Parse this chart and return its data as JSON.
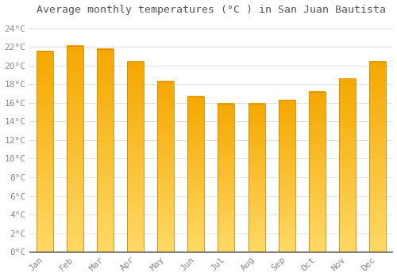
{
  "title": "Average monthly temperatures (°C ) in San Juan Bautista",
  "months": [
    "Jan",
    "Feb",
    "Mar",
    "Apr",
    "May",
    "Jun",
    "Jul",
    "Aug",
    "Sep",
    "Oct",
    "Nov",
    "Dec"
  ],
  "values": [
    21.5,
    22.1,
    21.8,
    20.4,
    18.3,
    16.7,
    15.9,
    15.9,
    16.3,
    17.2,
    18.6,
    20.4
  ],
  "bar_color_top": "#F5A800",
  "bar_color_bottom": "#FFD966",
  "ylim": [
    0,
    25
  ],
  "yticks": [
    0,
    2,
    4,
    6,
    8,
    10,
    12,
    14,
    16,
    18,
    20,
    22,
    24
  ],
  "ytick_labels": [
    "0°C",
    "2°C",
    "4°C",
    "6°C",
    "8°C",
    "10°C",
    "12°C",
    "14°C",
    "16°C",
    "18°C",
    "20°C",
    "22°C",
    "24°C"
  ],
  "grid_color": "#e0e0e0",
  "background_color": "#ffffff",
  "title_fontsize": 9.5,
  "axis_fontsize": 8,
  "bar_edge_color": "#CC8800",
  "bar_width": 0.55
}
